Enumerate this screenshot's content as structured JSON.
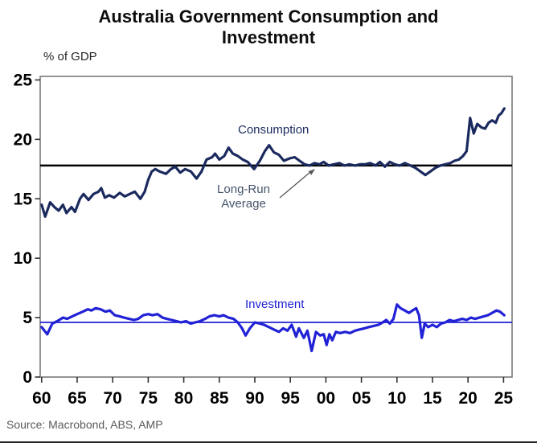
{
  "title": "Australia Government Consumption and Investment",
  "y_axis_unit": "% of GDP",
  "source": "Source: Macrobond, ABS, AMP",
  "annotations": {
    "consumption": "Consumption",
    "investment": "Investment",
    "long_run_line1": "Long-Run",
    "long_run_line2": "Average"
  },
  "colors": {
    "consumption_line": "#1b2a5e",
    "investment_line": "#2121d6",
    "long_run_average_line": "#000000",
    "frame": "#7a7a7a",
    "tick_mark": "#333333",
    "annotation_gray": "#44546a",
    "arrow": "#595959",
    "source_text": "#595959"
  },
  "chart_data": {
    "type": "line",
    "title": "Australia Government Consumption and Investment",
    "xlabel": "",
    "ylabel": "% of GDP",
    "xlim": [
      1959.8,
      2026.2
    ],
    "ylim": [
      0,
      25.3
    ],
    "grid": false,
    "legend": "inline-labels",
    "y_ticks": [
      {
        "value": 25,
        "label": "25"
      },
      {
        "value": 20,
        "label": "20"
      },
      {
        "value": 15,
        "label": "15"
      },
      {
        "value": 10,
        "label": "10"
      },
      {
        "value": 5,
        "label": "5"
      },
      {
        "value": 0,
        "label": "0"
      }
    ],
    "x_ticks": [
      {
        "value": 1960,
        "label": "60"
      },
      {
        "value": 1965,
        "label": "65"
      },
      {
        "value": 1970,
        "label": "70"
      },
      {
        "value": 1975,
        "label": "75"
      },
      {
        "value": 1980,
        "label": "80"
      },
      {
        "value": 1985,
        "label": "85"
      },
      {
        "value": 1990,
        "label": "90"
      },
      {
        "value": 1995,
        "label": "95"
      },
      {
        "value": 2000,
        "label": "00"
      },
      {
        "value": 2005,
        "label": "05"
      },
      {
        "value": 2010,
        "label": "10"
      },
      {
        "value": 2015,
        "label": "15"
      },
      {
        "value": 2020,
        "label": "20"
      },
      {
        "value": 2025,
        "label": "25"
      }
    ],
    "long_run_average": 17.8,
    "investment_average": 4.6,
    "series": [
      {
        "name": "Consumption",
        "color": "#1b2a5e",
        "points": [
          [
            1960.0,
            14.5
          ],
          [
            1960.5,
            13.5
          ],
          [
            1961.2,
            14.7
          ],
          [
            1961.8,
            14.3
          ],
          [
            1962.4,
            14.0
          ],
          [
            1963.0,
            14.5
          ],
          [
            1963.5,
            13.8
          ],
          [
            1964.2,
            14.3
          ],
          [
            1964.7,
            13.9
          ],
          [
            1965.4,
            15.0
          ],
          [
            1965.9,
            15.4
          ],
          [
            1966.6,
            14.9
          ],
          [
            1967.3,
            15.4
          ],
          [
            1968.0,
            15.6
          ],
          [
            1968.4,
            15.9
          ],
          [
            1968.9,
            15.1
          ],
          [
            1969.5,
            15.3
          ],
          [
            1970.2,
            15.1
          ],
          [
            1971.0,
            15.5
          ],
          [
            1971.7,
            15.2
          ],
          [
            1972.4,
            15.4
          ],
          [
            1973.1,
            15.6
          ],
          [
            1973.9,
            15.0
          ],
          [
            1974.5,
            15.6
          ],
          [
            1975.0,
            16.6
          ],
          [
            1975.5,
            17.3
          ],
          [
            1976.0,
            17.5
          ],
          [
            1976.6,
            17.3
          ],
          [
            1977.5,
            17.1
          ],
          [
            1978.2,
            17.5
          ],
          [
            1978.8,
            17.7
          ],
          [
            1979.5,
            17.2
          ],
          [
            1980.2,
            17.5
          ],
          [
            1981.0,
            17.3
          ],
          [
            1981.8,
            16.7
          ],
          [
            1982.5,
            17.3
          ],
          [
            1983.2,
            18.3
          ],
          [
            1984.0,
            18.5
          ],
          [
            1984.4,
            18.8
          ],
          [
            1985.0,
            18.3
          ],
          [
            1985.7,
            18.6
          ],
          [
            1986.3,
            19.3
          ],
          [
            1986.9,
            18.8
          ],
          [
            1987.6,
            18.6
          ],
          [
            1988.3,
            18.3
          ],
          [
            1989.0,
            18.1
          ],
          [
            1989.9,
            17.5
          ],
          [
            1990.7,
            18.2
          ],
          [
            1991.4,
            19.0
          ],
          [
            1992.0,
            19.5
          ],
          [
            1992.7,
            18.9
          ],
          [
            1993.4,
            18.7
          ],
          [
            1994.1,
            18.2
          ],
          [
            1994.9,
            18.4
          ],
          [
            1995.6,
            18.5
          ],
          [
            1996.3,
            18.2
          ],
          [
            1997.0,
            17.9
          ],
          [
            1997.7,
            17.8
          ],
          [
            1998.4,
            18.0
          ],
          [
            1999.1,
            17.9
          ],
          [
            1999.7,
            18.1
          ],
          [
            2000.4,
            17.8
          ],
          [
            2001.1,
            17.9
          ],
          [
            2001.9,
            18.0
          ],
          [
            2002.6,
            17.8
          ],
          [
            2003.3,
            17.9
          ],
          [
            2004.1,
            17.8
          ],
          [
            2004.8,
            17.9
          ],
          [
            2005.5,
            17.9
          ],
          [
            2006.2,
            18.0
          ],
          [
            2007.0,
            17.8
          ],
          [
            2007.6,
            18.1
          ],
          [
            2008.3,
            17.7
          ],
          [
            2009.0,
            18.1
          ],
          [
            2009.7,
            17.9
          ],
          [
            2010.4,
            17.8
          ],
          [
            2011.1,
            18.0
          ],
          [
            2011.9,
            17.8
          ],
          [
            2012.6,
            17.6
          ],
          [
            2013.3,
            17.3
          ],
          [
            2014.0,
            17.0
          ],
          [
            2014.7,
            17.3
          ],
          [
            2015.4,
            17.6
          ],
          [
            2016.1,
            17.8
          ],
          [
            2016.8,
            17.9
          ],
          [
            2017.5,
            18.0
          ],
          [
            2018.1,
            18.2
          ],
          [
            2018.7,
            18.3
          ],
          [
            2019.3,
            18.6
          ],
          [
            2019.8,
            19.0
          ],
          [
            2020.3,
            21.8
          ],
          [
            2020.8,
            20.5
          ],
          [
            2021.3,
            21.3
          ],
          [
            2021.9,
            21.0
          ],
          [
            2022.4,
            20.9
          ],
          [
            2022.9,
            21.4
          ],
          [
            2023.4,
            21.6
          ],
          [
            2023.9,
            21.4
          ],
          [
            2024.3,
            22.0
          ],
          [
            2024.7,
            22.2
          ],
          [
            2025.1,
            22.6
          ]
        ]
      },
      {
        "name": "Investment",
        "color": "#2121d6",
        "points": [
          [
            1960.0,
            4.2
          ],
          [
            1960.8,
            3.6
          ],
          [
            1961.5,
            4.5
          ],
          [
            1962.2,
            4.7
          ],
          [
            1963.0,
            5.0
          ],
          [
            1963.6,
            4.9
          ],
          [
            1964.3,
            5.1
          ],
          [
            1965.0,
            5.3
          ],
          [
            1965.8,
            5.5
          ],
          [
            1966.5,
            5.7
          ],
          [
            1967.0,
            5.6
          ],
          [
            1967.6,
            5.8
          ],
          [
            1968.3,
            5.7
          ],
          [
            1969.0,
            5.5
          ],
          [
            1969.6,
            5.6
          ],
          [
            1970.3,
            5.2
          ],
          [
            1971.0,
            5.1
          ],
          [
            1971.6,
            5.0
          ],
          [
            1972.3,
            4.9
          ],
          [
            1973.0,
            4.8
          ],
          [
            1973.6,
            4.9
          ],
          [
            1974.3,
            5.2
          ],
          [
            1975.0,
            5.3
          ],
          [
            1975.6,
            5.2
          ],
          [
            1976.3,
            5.3
          ],
          [
            1977.0,
            5.0
          ],
          [
            1977.6,
            4.9
          ],
          [
            1978.3,
            4.8
          ],
          [
            1979.0,
            4.7
          ],
          [
            1979.6,
            4.6
          ],
          [
            1980.3,
            4.7
          ],
          [
            1981.0,
            4.5
          ],
          [
            1981.6,
            4.6
          ],
          [
            1982.3,
            4.7
          ],
          [
            1983.0,
            4.9
          ],
          [
            1983.6,
            5.1
          ],
          [
            1984.3,
            5.2
          ],
          [
            1985.0,
            5.1
          ],
          [
            1985.6,
            5.2
          ],
          [
            1986.3,
            5.0
          ],
          [
            1987.0,
            4.9
          ],
          [
            1987.6,
            4.6
          ],
          [
            1988.2,
            4.1
          ],
          [
            1988.7,
            3.5
          ],
          [
            1989.3,
            4.1
          ],
          [
            1990.0,
            4.6
          ],
          [
            1990.7,
            4.5
          ],
          [
            1991.3,
            4.4
          ],
          [
            1992.0,
            4.2
          ],
          [
            1992.7,
            4.0
          ],
          [
            1993.4,
            3.8
          ],
          [
            1994.0,
            4.1
          ],
          [
            1994.6,
            3.9
          ],
          [
            1995.2,
            4.4
          ],
          [
            1995.8,
            3.4
          ],
          [
            1996.2,
            4.1
          ],
          [
            1996.9,
            3.3
          ],
          [
            1997.4,
            3.9
          ],
          [
            1998.0,
            2.2
          ],
          [
            1998.6,
            3.8
          ],
          [
            1999.2,
            3.5
          ],
          [
            1999.7,
            3.6
          ],
          [
            2000.1,
            2.7
          ],
          [
            2000.5,
            3.6
          ],
          [
            2000.9,
            3.1
          ],
          [
            2001.4,
            3.8
          ],
          [
            2002.0,
            3.7
          ],
          [
            2002.7,
            3.8
          ],
          [
            2003.4,
            3.7
          ],
          [
            2004.1,
            3.9
          ],
          [
            2004.7,
            4.0
          ],
          [
            2005.4,
            4.1
          ],
          [
            2006.0,
            4.2
          ],
          [
            2006.7,
            4.3
          ],
          [
            2007.4,
            4.4
          ],
          [
            2008.0,
            4.6
          ],
          [
            2008.5,
            4.8
          ],
          [
            2009.0,
            4.5
          ],
          [
            2009.5,
            4.9
          ],
          [
            2010.0,
            6.1
          ],
          [
            2010.5,
            5.8
          ],
          [
            2011.1,
            5.6
          ],
          [
            2011.7,
            5.4
          ],
          [
            2012.2,
            5.6
          ],
          [
            2012.7,
            5.8
          ],
          [
            2013.1,
            5.2
          ],
          [
            2013.5,
            3.3
          ],
          [
            2013.9,
            4.5
          ],
          [
            2014.4,
            4.2
          ],
          [
            2015.0,
            4.4
          ],
          [
            2015.6,
            4.2
          ],
          [
            2016.2,
            4.5
          ],
          [
            2016.8,
            4.6
          ],
          [
            2017.4,
            4.8
          ],
          [
            2018.0,
            4.7
          ],
          [
            2018.6,
            4.8
          ],
          [
            2019.2,
            4.9
          ],
          [
            2019.8,
            4.8
          ],
          [
            2020.4,
            5.0
          ],
          [
            2021.0,
            4.9
          ],
          [
            2021.6,
            5.0
          ],
          [
            2022.2,
            5.1
          ],
          [
            2022.8,
            5.2
          ],
          [
            2023.4,
            5.4
          ],
          [
            2024.0,
            5.6
          ],
          [
            2024.5,
            5.5
          ],
          [
            2025.1,
            5.2
          ]
        ]
      }
    ]
  }
}
